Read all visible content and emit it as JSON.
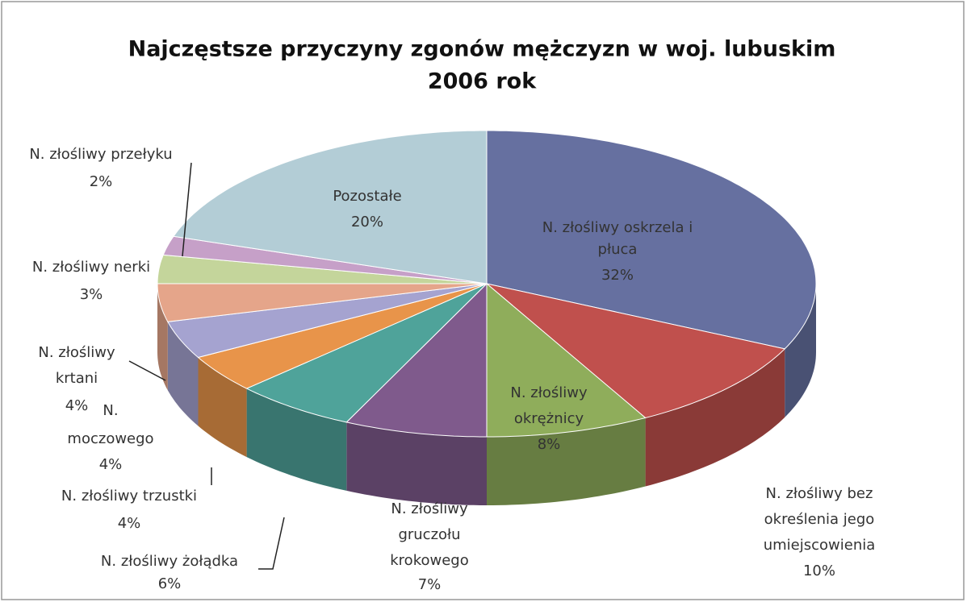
{
  "chart_data": {
    "type": "pie3d",
    "title": [
      "Najczęstsze przyczyny zgonów mężczyzn w woj. lubuskim",
      "2006 rok"
    ],
    "labels": [
      [
        "N. złośliwy oskrzela i",
        "płuca"
      ],
      [
        "N. złośliwy bez",
        "określenia jego",
        "umiejscowienia"
      ],
      [
        "N. złośliwy",
        "okrężnicy"
      ],
      [
        "N. złośliwy",
        "gruczołu",
        "krokowego"
      ],
      [
        "N. złośliwy żołądka"
      ],
      [
        "N. złośliwy trzustki"
      ],
      [
        "N.",
        "moczowego"
      ],
      [
        "N. złośliwy",
        "krtani"
      ],
      [
        "N. złośliwy nerki"
      ],
      [
        "N. złośliwy przełyku"
      ],
      [
        "Pozostałe"
      ]
    ],
    "values": [
      32,
      10,
      8,
      7,
      6,
      4,
      4,
      4,
      3,
      2,
      20
    ],
    "value_labels": [
      "32%",
      "10%",
      "8%",
      "7%",
      "6%",
      "4%",
      "4%",
      "4%",
      "3%",
      "2%",
      "20%"
    ],
    "colors": [
      "#6670a0",
      "#c0504d",
      "#8fad5b",
      "#7f5a8c",
      "#4fa39a",
      "#e8944a",
      "#a5a3d0",
      "#e5a58a",
      "#c4d59b",
      "#c6a0c8",
      "#b3cdd6"
    ]
  }
}
